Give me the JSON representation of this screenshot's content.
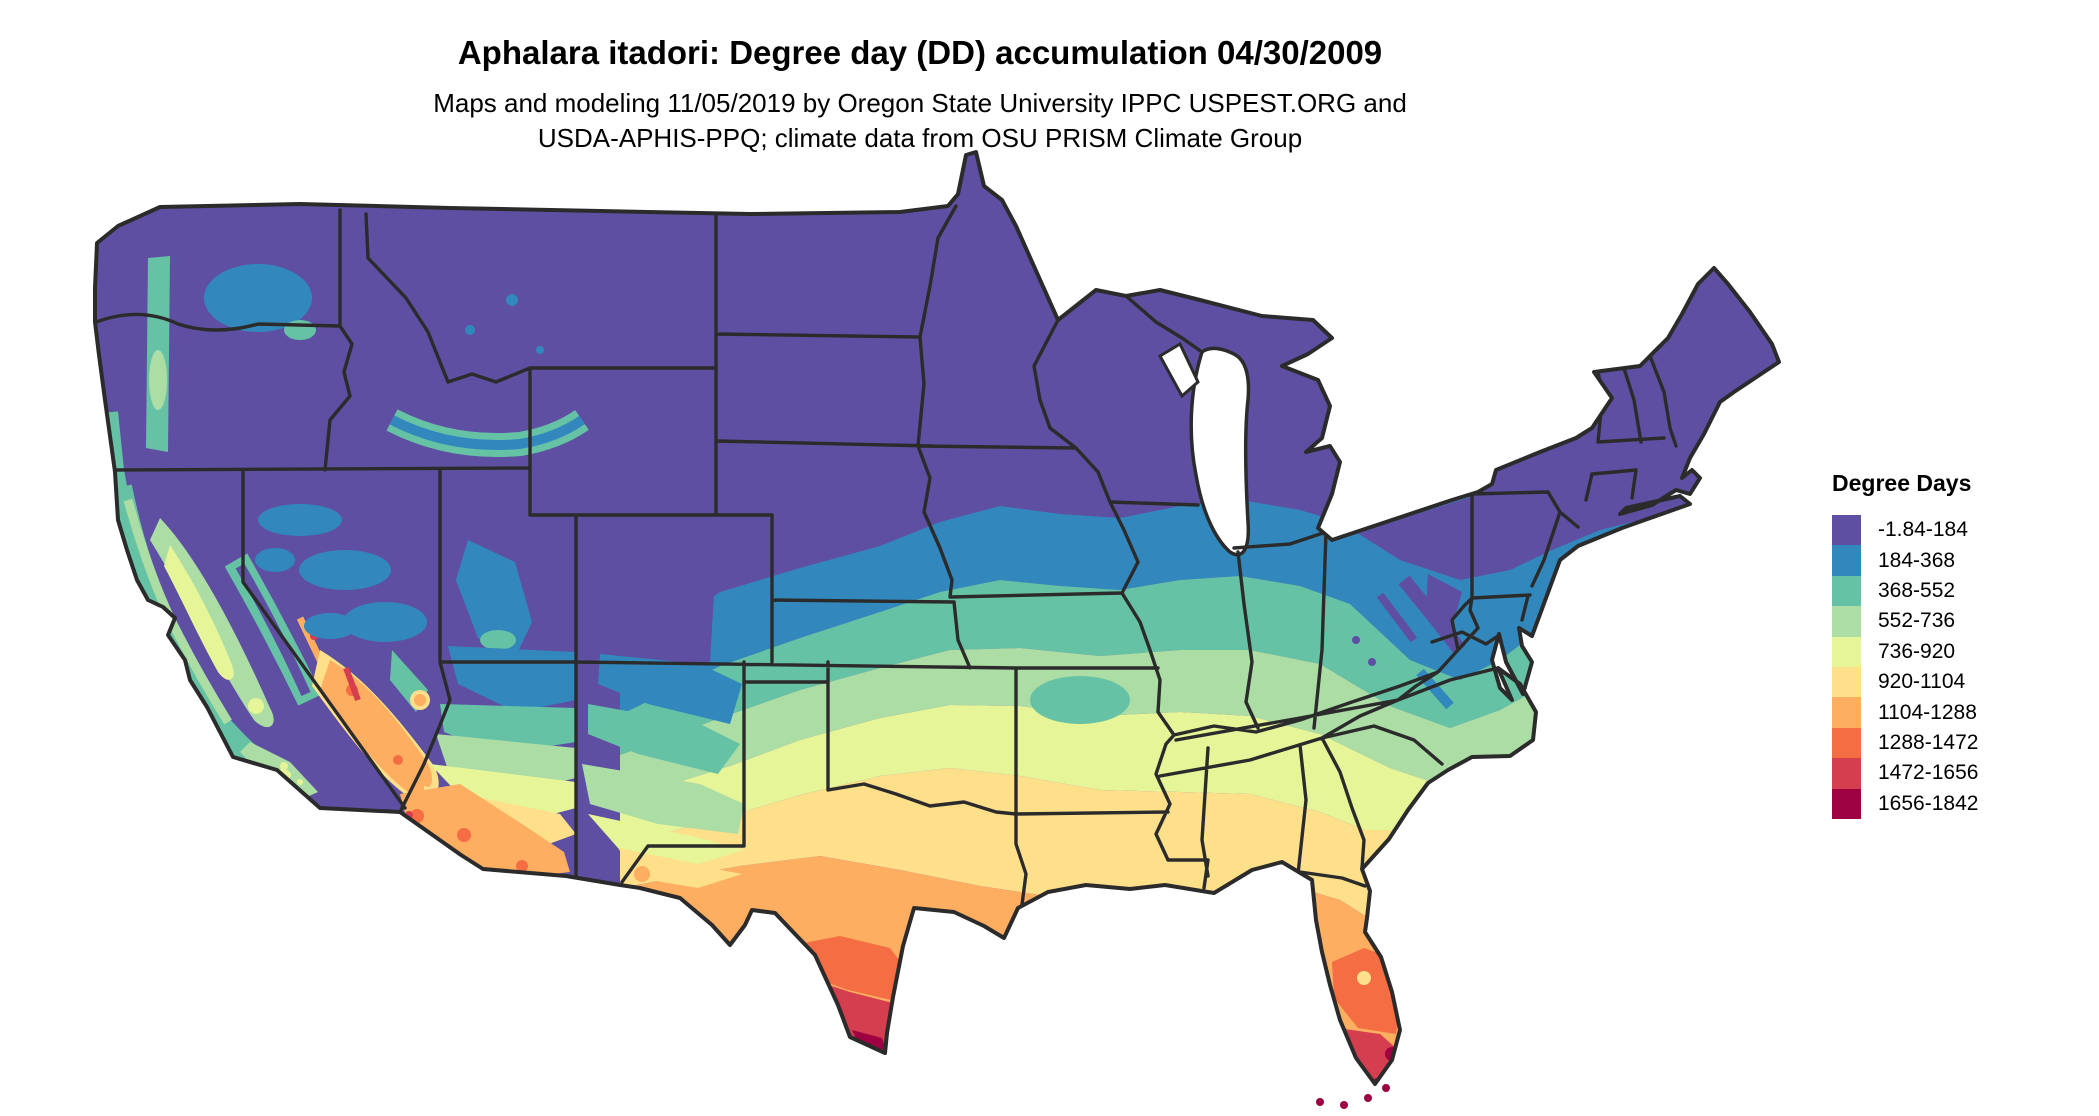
{
  "header": {
    "title": "Aphalara itadori: Degree day (DD) accumulation 04/30/2009",
    "subtitle_line1": "Maps and modeling 11/05/2019 by Oregon State University IPPC USPEST.ORG and",
    "subtitle_line2": "USDA-APHIS-PPQ; climate data from OSU PRISM Climate Group"
  },
  "legend": {
    "title": "Degree Days",
    "classes": [
      {
        "label": "-1.84-184",
        "color": "#5e4fa2"
      },
      {
        "label": "184-368",
        "color": "#3288bd"
      },
      {
        "label": "368-552",
        "color": "#66c2a5"
      },
      {
        "label": "552-736",
        "color": "#abdda4"
      },
      {
        "label": "736-920",
        "color": "#e6f598"
      },
      {
        "label": "920-1104",
        "color": "#fee08b"
      },
      {
        "label": "1104-1288",
        "color": "#fdae61"
      },
      {
        "label": "1288-1472",
        "color": "#f46d43"
      },
      {
        "label": "1472-1656",
        "color": "#d53e4f"
      },
      {
        "label": "1656-1842",
        "color": "#9e0142"
      }
    ]
  },
  "map": {
    "region": "Contiguous United States with state boundaries",
    "border_color": "#2b2b2b",
    "water_background_color": "#ffffff"
  },
  "chart_data": {
    "type": "heatmap",
    "title": "Aphalara itadori: Degree day (DD) accumulation 04/30/2009",
    "legend_title": "Degree Days",
    "legend_position": "right",
    "bins": [
      [
        -1.84,
        184
      ],
      [
        184,
        368
      ],
      [
        368,
        552
      ],
      [
        552,
        736
      ],
      [
        736,
        920
      ],
      [
        920,
        1104
      ],
      [
        1104,
        1288
      ],
      [
        1288,
        1472
      ],
      [
        1472,
        1656
      ],
      [
        1656,
        1842
      ]
    ],
    "colors": [
      "#5e4fa2",
      "#3288bd",
      "#66c2a5",
      "#abdda4",
      "#e6f598",
      "#fee08b",
      "#fdae61",
      "#f46d43",
      "#d53e4f",
      "#9e0142"
    ],
    "pattern_summary": "Degree-day accumulation increases from north to south: northern tier (Pacific Northwest, northern Rockies, northern plains, Great Lakes, New England) below 184 DD; a blue 184-368 DD band across the central plains and Ohio valley; green 368-736 DD across the mid-south; yellow 736-1104 DD across Texas, the Gulf states and north Florida; orange-to-dark-red 1104-1842 DD in the desert Southwest (Yuma/Phoenix), deep south Texas (Rio Grande valley, maximum near Brownsville) and south Florida including the Keys; California Central Valley and coast show elevated 552-920 DD amid a cool Sierra Nevada."
  }
}
